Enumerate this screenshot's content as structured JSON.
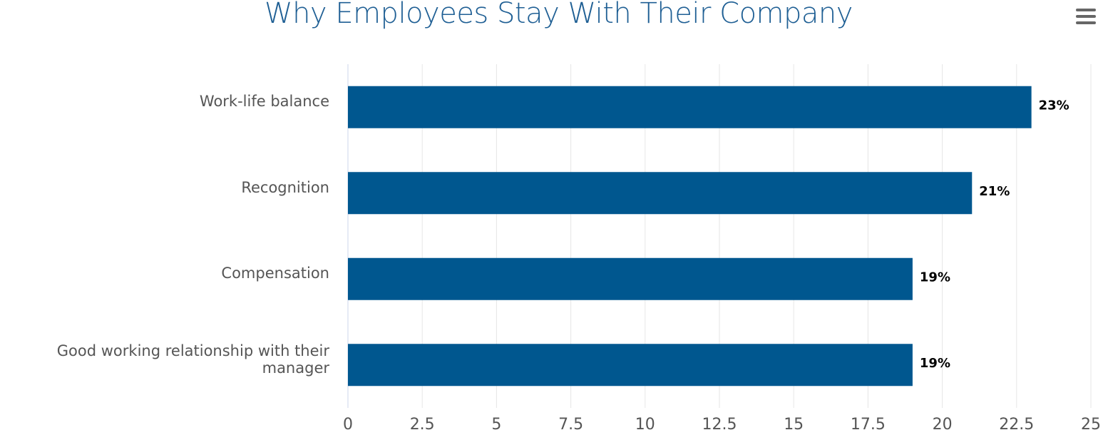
{
  "chart_data": {
    "type": "bar",
    "orientation": "horizontal",
    "title": "Why Employees Stay With Their Company",
    "categories": [
      "Work-life balance",
      "Recognition",
      "Compensation",
      "Good working relationship with their manager"
    ],
    "values": [
      23,
      21,
      19,
      19
    ],
    "data_labels": [
      "23%",
      "21%",
      "19%",
      "19%"
    ],
    "xlim": [
      0,
      25
    ],
    "x_ticks": [
      "0",
      "2.5",
      "5",
      "7.5",
      "10",
      "12.5",
      "15",
      "17.5",
      "20",
      "22.5",
      "25"
    ],
    "grid": true,
    "bar_color": "#00578f",
    "xlabel": "",
    "ylabel": ""
  },
  "menu": {
    "icon": "hamburger-menu-icon"
  }
}
